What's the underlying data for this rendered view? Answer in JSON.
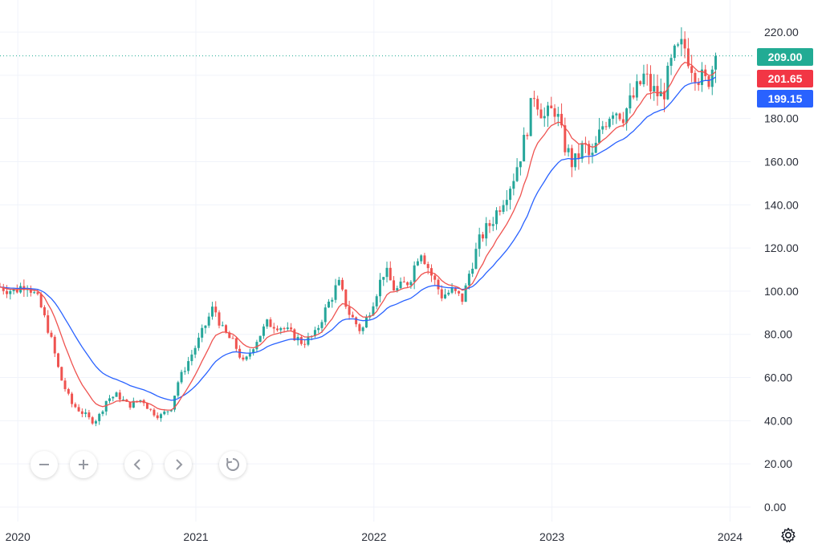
{
  "chart_data": {
    "type": "candlestick",
    "ylim": [
      -5,
      225
    ],
    "y_ticks": [
      "0.00",
      "20.00",
      "40.00",
      "60.00",
      "80.00",
      "100.00",
      "120.00",
      "140.00",
      "160.00",
      "180.00",
      "200.00",
      "220.00"
    ],
    "x_ticks": [
      {
        "label": "2020",
        "t": 2020.0
      },
      {
        "label": "2021",
        "t": 2021.0
      },
      {
        "label": "2022",
        "t": 2022.0
      },
      {
        "label": "2023",
        "t": 2023.0
      },
      {
        "label": "2024",
        "t": 2024.0
      }
    ],
    "xlim": [
      2019.9,
      2024.53
    ],
    "price_anchors": [
      [
        2019.9,
        102
      ],
      [
        2019.98,
        100
      ],
      [
        2020.05,
        104
      ],
      [
        2020.12,
        95
      ],
      [
        2020.18,
        80
      ],
      [
        2020.24,
        60
      ],
      [
        2020.3,
        48
      ],
      [
        2020.36,
        44
      ],
      [
        2020.41,
        40
      ],
      [
        2020.45,
        41
      ],
      [
        2020.5,
        50
      ],
      [
        2020.56,
        52
      ],
      [
        2020.62,
        47
      ],
      [
        2020.7,
        50
      ],
      [
        2020.74,
        45
      ],
      [
        2020.8,
        42
      ],
      [
        2020.86,
        46
      ],
      [
        2020.9,
        58
      ],
      [
        2020.96,
        68
      ],
      [
        2021.02,
        78
      ],
      [
        2021.1,
        93
      ],
      [
        2021.15,
        82
      ],
      [
        2021.22,
        75
      ],
      [
        2021.27,
        66
      ],
      [
        2021.33,
        76
      ],
      [
        2021.4,
        85
      ],
      [
        2021.47,
        84
      ],
      [
        2021.54,
        80
      ],
      [
        2021.6,
        76
      ],
      [
        2021.67,
        80
      ],
      [
        2021.72,
        90
      ],
      [
        2021.8,
        104
      ],
      [
        2021.86,
        90
      ],
      [
        2021.93,
        81
      ],
      [
        2021.98,
        92
      ],
      [
        2022.06,
        110
      ],
      [
        2022.12,
        100
      ],
      [
        2022.2,
        105
      ],
      [
        2022.26,
        120
      ],
      [
        2022.32,
        108
      ],
      [
        2022.38,
        98
      ],
      [
        2022.44,
        100
      ],
      [
        2022.5,
        96
      ],
      [
        2022.54,
        110
      ],
      [
        2022.6,
        125
      ],
      [
        2022.66,
        132
      ],
      [
        2022.72,
        142
      ],
      [
        2022.78,
        152
      ],
      [
        2022.84,
        168
      ],
      [
        2022.9,
        192
      ],
      [
        2022.96,
        180
      ],
      [
        2023.02,
        185
      ],
      [
        2023.06,
        170
      ],
      [
        2023.12,
        158
      ],
      [
        2023.18,
        168
      ],
      [
        2023.22,
        160
      ],
      [
        2023.28,
        176
      ],
      [
        2023.34,
        185
      ],
      [
        2023.4,
        182
      ],
      [
        2023.46,
        190
      ],
      [
        2023.52,
        200
      ],
      [
        2023.56,
        193
      ],
      [
        2023.62,
        190
      ],
      [
        2023.68,
        208
      ],
      [
        2023.74,
        214
      ],
      [
        2023.78,
        206
      ],
      [
        2023.82,
        200
      ],
      [
        2023.87,
        196
      ],
      [
        2023.92,
        209
      ]
    ],
    "ma_fast_color": "#ef5350",
    "ma_slow_color": "#2962ff",
    "up_color": "#26a69a",
    "down_color": "#ef5350",
    "last_price": 209.0,
    "ma_fast_last": 201.65,
    "ma_slow_last": 199.15
  },
  "price_scale": {
    "last_price_label": "209.00",
    "ma_fast_label": "201.65",
    "ma_slow_label": "199.15",
    "last_price_color": "#22ab94",
    "ma_fast_badge_color": "#f23645",
    "ma_slow_badge_color": "#2962ff"
  },
  "toolbar": {
    "zoom_out_icon": "minus-icon",
    "zoom_in_icon": "plus-icon",
    "scroll_left_icon": "chevron-left-icon",
    "scroll_right_icon": "chevron-right-icon",
    "reset_icon": "reset-icon"
  }
}
